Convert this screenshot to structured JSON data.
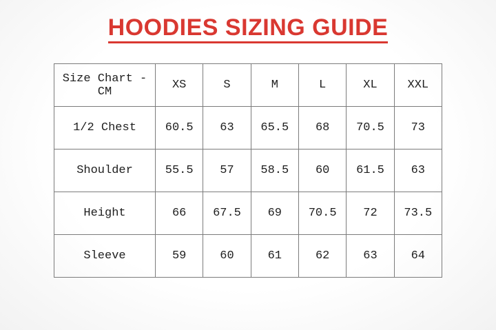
{
  "title": "HOODIES SIZING GUIDE",
  "colors": {
    "title_red": "#d93831",
    "border_gray": "#7b7b7b",
    "text_dark": "#1e1e1e",
    "background": "#fcfcfc"
  },
  "table": {
    "header": [
      "Size Chart - CM",
      "XS",
      "S",
      "M",
      "L",
      "XL",
      "XXL"
    ],
    "rows": [
      {
        "label": "1/2 Chest",
        "values": [
          "60.5",
          "63",
          "65.5",
          "68",
          "70.5",
          "73"
        ]
      },
      {
        "label": "Shoulder",
        "values": [
          "55.5",
          "57",
          "58.5",
          "60",
          "61.5",
          "63"
        ]
      },
      {
        "label": "Height",
        "values": [
          "66",
          "67.5",
          "69",
          "70.5",
          "72",
          "73.5"
        ]
      },
      {
        "label": "Sleeve",
        "values": [
          "59",
          "60",
          "61",
          "62",
          "63",
          "64"
        ]
      }
    ]
  }
}
